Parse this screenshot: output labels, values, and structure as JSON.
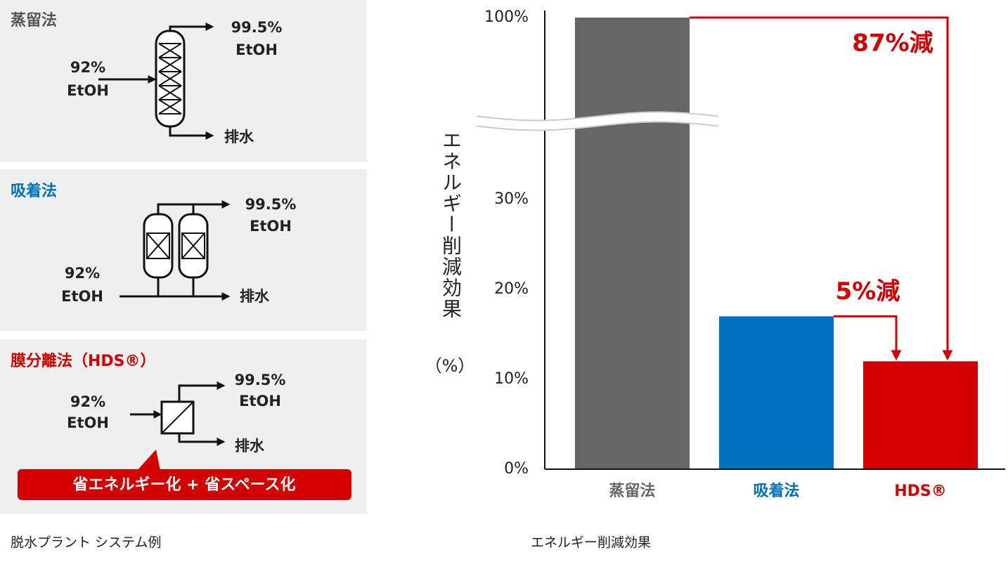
{
  "diagrams": [
    {
      "title": "蒸留法",
      "product": [
        "99.5%",
        "EtOH"
      ],
      "feed": [
        "92%",
        "EtOH"
      ],
      "waste": "排水"
    },
    {
      "title": "吸着法",
      "product": [
        "99.5%",
        "EtOH"
      ],
      "feed": [
        "92%",
        "EtOH"
      ],
      "waste": "排水"
    },
    {
      "title": "膜分離法（HDS®）",
      "product": [
        "99.5%",
        "EtOH"
      ],
      "feed": [
        "92%",
        "EtOH"
      ],
      "waste": "排水",
      "badge": "省エネルギー化 + 省スペース化"
    }
  ],
  "captions": [
    "脱水プラント システム例",
    "エネルギー削減効果"
  ],
  "chart_data": {
    "type": "bar",
    "ylabel": "エネルギー削減効果",
    "ylabel_unit": "（%）",
    "categories": [
      "蒸留法",
      "吸着法",
      "HDS®"
    ],
    "values": [
      100,
      17,
      12
    ],
    "colors": [
      "#666666",
      "#0070c0",
      "#d40000"
    ],
    "ylim": [
      0,
      100
    ],
    "yticks": [
      {
        "value": 0,
        "label": "0%"
      },
      {
        "value": 10,
        "label": "10%"
      },
      {
        "value": 20,
        "label": "20%"
      },
      {
        "value": 30,
        "label": "30%"
      },
      {
        "value": 100,
        "label": "100%"
      }
    ],
    "axis_break": true,
    "annotations": [
      {
        "text": "87%減",
        "from": 0,
        "to": 2
      },
      {
        "text": "5%減",
        "from": 1,
        "to": 2
      }
    ]
  }
}
